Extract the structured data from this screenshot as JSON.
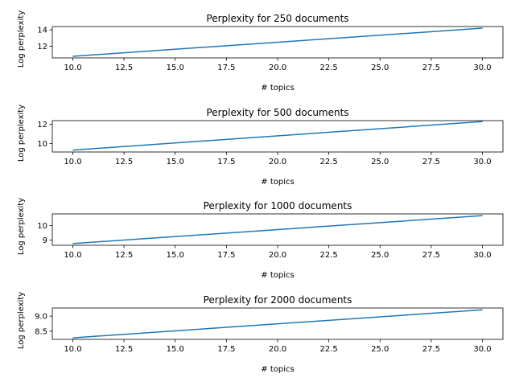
{
  "chart_data": [
    {
      "type": "line",
      "title": "Perplexity for 250 documents",
      "xlabel": "# topics",
      "ylabel": "Log perplexity",
      "x": [
        10,
        30
      ],
      "y": [
        10.8,
        14.2
      ],
      "xlim": [
        9,
        31
      ],
      "ylim": [
        10.6,
        14.4
      ],
      "xticks": [
        10.0,
        12.5,
        15.0,
        17.5,
        20.0,
        22.5,
        25.0,
        27.5,
        30.0
      ],
      "xtick_labels": [
        "10.0",
        "12.5",
        "15.0",
        "17.5",
        "20.0",
        "22.5",
        "25.0",
        "27.5",
        "30.0"
      ],
      "yticks": [
        12,
        14
      ],
      "ytick_labels": [
        "12",
        "14"
      ],
      "color": "#1f77b4"
    },
    {
      "type": "line",
      "title": "Perplexity for 500 documents",
      "xlabel": "# topics",
      "ylabel": "Log perplexity",
      "x": [
        10,
        30
      ],
      "y": [
        9.3,
        12.3
      ],
      "xlim": [
        9,
        31
      ],
      "ylim": [
        9.1,
        12.4
      ],
      "xticks": [
        10.0,
        12.5,
        15.0,
        17.5,
        20.0,
        22.5,
        25.0,
        27.5,
        30.0
      ],
      "xtick_labels": [
        "10.0",
        "12.5",
        "15.0",
        "17.5",
        "20.0",
        "22.5",
        "25.0",
        "27.5",
        "30.0"
      ],
      "yticks": [
        10,
        12
      ],
      "ytick_labels": [
        "10",
        "12"
      ],
      "color": "#1f77b4"
    },
    {
      "type": "line",
      "title": "Perplexity for 1000 documents",
      "xlabel": "# topics",
      "ylabel": "Log perplexity",
      "x": [
        10,
        30
      ],
      "y": [
        8.77,
        10.68
      ],
      "xlim": [
        9,
        31
      ],
      "ylim": [
        8.65,
        10.8
      ],
      "xticks": [
        10.0,
        12.5,
        15.0,
        17.5,
        20.0,
        22.5,
        25.0,
        27.5,
        30.0
      ],
      "xtick_labels": [
        "10.0",
        "12.5",
        "15.0",
        "17.5",
        "20.0",
        "22.5",
        "25.0",
        "27.5",
        "30.0"
      ],
      "yticks": [
        9,
        10
      ],
      "ytick_labels": [
        "9",
        "10"
      ],
      "color": "#1f77b4"
    },
    {
      "type": "line",
      "title": "Perplexity for 2000 documents",
      "xlabel": "# topics",
      "ylabel": "Log perplexity",
      "x": [
        10,
        30
      ],
      "y": [
        8.28,
        9.21
      ],
      "xlim": [
        9,
        31
      ],
      "ylim": [
        8.23,
        9.27
      ],
      "xticks": [
        10.0,
        12.5,
        15.0,
        17.5,
        20.0,
        22.5,
        25.0,
        27.5,
        30.0
      ],
      "xtick_labels": [
        "10.0",
        "12.5",
        "15.0",
        "17.5",
        "20.0",
        "22.5",
        "25.0",
        "27.5",
        "30.0"
      ],
      "yticks": [
        8.5,
        9.0
      ],
      "ytick_labels": [
        "8.5",
        "9.0"
      ],
      "color": "#1f77b4"
    }
  ]
}
